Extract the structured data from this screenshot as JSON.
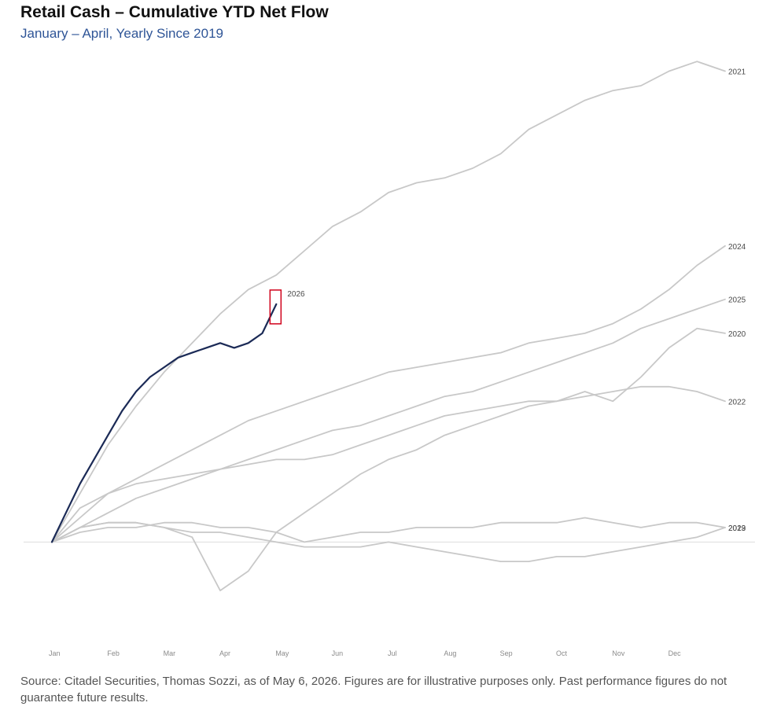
{
  "header": {
    "title": "Retail Cash – Cumulative YTD Net Flow",
    "subtitle": "January – April, Yearly Since 2019"
  },
  "footer": {
    "source": "Source: Citadel Securities, Thomas Sozzi, as of May 6, 2026. Figures are for illustrative purposes only. Past performance figures do not guarantee future results."
  },
  "colors": {
    "history": "#c8c8c8",
    "current": "#1b2a56",
    "highlight": "#d0021b",
    "subtitle": "#2f5597",
    "zero_line": "#dddddd"
  },
  "chart_data": {
    "type": "line",
    "title": "Retail Cash – Cumulative YTD Net Flow",
    "subtitle": "January – April, Yearly Since 2019",
    "xlabel": "",
    "ylabel": "",
    "x_unit": "month (0 = start of Jan, 12 = end of Dec)",
    "xlim": [
      0,
      12
    ],
    "ylim": [
      -15,
      100
    ],
    "x_tick_labels": [
      "Jan",
      "Feb",
      "Mar",
      "Apr",
      "May",
      "Jun",
      "Jul",
      "Aug",
      "Sep",
      "Oct",
      "Nov",
      "Dec"
    ],
    "grid": false,
    "legend": "none (labels at line ends)",
    "highlight_series": "2026",
    "series": [
      {
        "name": "2021",
        "x": [
          0,
          0.5,
          1,
          1.5,
          2,
          2.5,
          3,
          3.5,
          4,
          4.5,
          5,
          5.5,
          6,
          6.5,
          7,
          7.5,
          8,
          8.5,
          9,
          9.5,
          10,
          10.5,
          11,
          11.5,
          12
        ],
        "y": [
          0,
          10,
          20,
          28,
          35,
          41,
          47,
          52,
          55,
          60,
          65,
          68,
          72,
          74,
          75,
          77,
          80,
          85,
          88,
          91,
          93,
          94,
          97,
          99,
          97
        ]
      },
      {
        "name": "2024",
        "x": [
          0,
          0.5,
          1,
          1.5,
          2,
          2.5,
          3,
          3.5,
          4,
          4.5,
          5,
          5.5,
          6,
          6.5,
          7,
          7.5,
          8,
          8.5,
          9,
          9.5,
          10,
          10.5,
          11,
          11.5,
          12
        ],
        "y": [
          0,
          5,
          10,
          13,
          16,
          19,
          22,
          25,
          27,
          29,
          31,
          33,
          35,
          36,
          37,
          38,
          39,
          41,
          42,
          43,
          45,
          48,
          52,
          57,
          61
        ]
      },
      {
        "name": "2025",
        "x": [
          0,
          0.5,
          1,
          1.5,
          2,
          2.5,
          3,
          3.5,
          4,
          4.5,
          5,
          5.5,
          6,
          6.5,
          7,
          7.5,
          8,
          8.5,
          9,
          9.5,
          10,
          10.5,
          11,
          11.5,
          12
        ],
        "y": [
          0,
          3,
          6,
          9,
          11,
          13,
          15,
          17,
          19,
          21,
          23,
          24,
          26,
          28,
          30,
          31,
          33,
          35,
          37,
          39,
          41,
          44,
          46,
          48,
          50
        ]
      },
      {
        "name": "2020",
        "x": [
          0,
          0.5,
          1,
          1.5,
          2,
          2.5,
          3,
          3.5,
          4,
          4.5,
          5,
          5.5,
          6,
          6.5,
          7,
          7.5,
          8,
          8.5,
          9,
          9.5,
          10,
          10.5,
          11,
          11.5,
          12
        ],
        "y": [
          0,
          3,
          4,
          4,
          3,
          1,
          -10,
          -6,
          2,
          6,
          10,
          14,
          17,
          19,
          22,
          24,
          26,
          28,
          29,
          31,
          29,
          34,
          40,
          44,
          43
        ]
      },
      {
        "name": "2022",
        "x": [
          0,
          0.5,
          1,
          1.5,
          2,
          2.5,
          3,
          3.5,
          4,
          4.5,
          5,
          5.5,
          6,
          6.5,
          7,
          7.5,
          8,
          8.5,
          9,
          9.5,
          10,
          10.5,
          11,
          11.5,
          12
        ],
        "y": [
          0,
          7,
          10,
          12,
          13,
          14,
          15,
          16,
          17,
          17,
          18,
          20,
          22,
          24,
          26,
          27,
          28,
          29,
          29,
          30,
          31,
          32,
          32,
          31,
          29
        ]
      },
      {
        "name": "2019",
        "x": [
          0,
          0.5,
          1,
          1.5,
          2,
          2.5,
          3,
          3.5,
          4,
          4.5,
          5,
          5.5,
          6,
          6.5,
          7,
          7.5,
          8,
          8.5,
          9,
          9.5,
          10,
          10.5,
          11,
          11.5,
          12
        ],
        "y": [
          0,
          2,
          3,
          3,
          4,
          4,
          3,
          3,
          2,
          0,
          1,
          2,
          2,
          3,
          3,
          3,
          4,
          4,
          4,
          5,
          4,
          3,
          4,
          4,
          3
        ]
      },
      {
        "name": "2023",
        "x": [
          0,
          0.5,
          1,
          1.5,
          2,
          2.5,
          3,
          3.5,
          4,
          4.5,
          5,
          5.5,
          6,
          6.5,
          7,
          7.5,
          8,
          8.5,
          9,
          9.5,
          10,
          10.5,
          11,
          11.5,
          12
        ],
        "y": [
          0,
          3,
          4,
          4,
          3,
          2,
          2,
          1,
          0,
          -1,
          -1,
          -1,
          0,
          -1,
          -2,
          -3,
          -4,
          -4,
          -3,
          -3,
          -2,
          -1,
          0,
          1,
          3
        ]
      },
      {
        "name": "2026",
        "x": [
          0,
          0.25,
          0.5,
          0.75,
          1,
          1.25,
          1.5,
          1.75,
          2,
          2.25,
          2.5,
          2.75,
          3,
          3.25,
          3.5,
          3.75,
          4
        ],
        "y": [
          0,
          6,
          12,
          17,
          22,
          27,
          31,
          34,
          36,
          38,
          39,
          40,
          41,
          40,
          41,
          43,
          49
        ]
      }
    ]
  }
}
